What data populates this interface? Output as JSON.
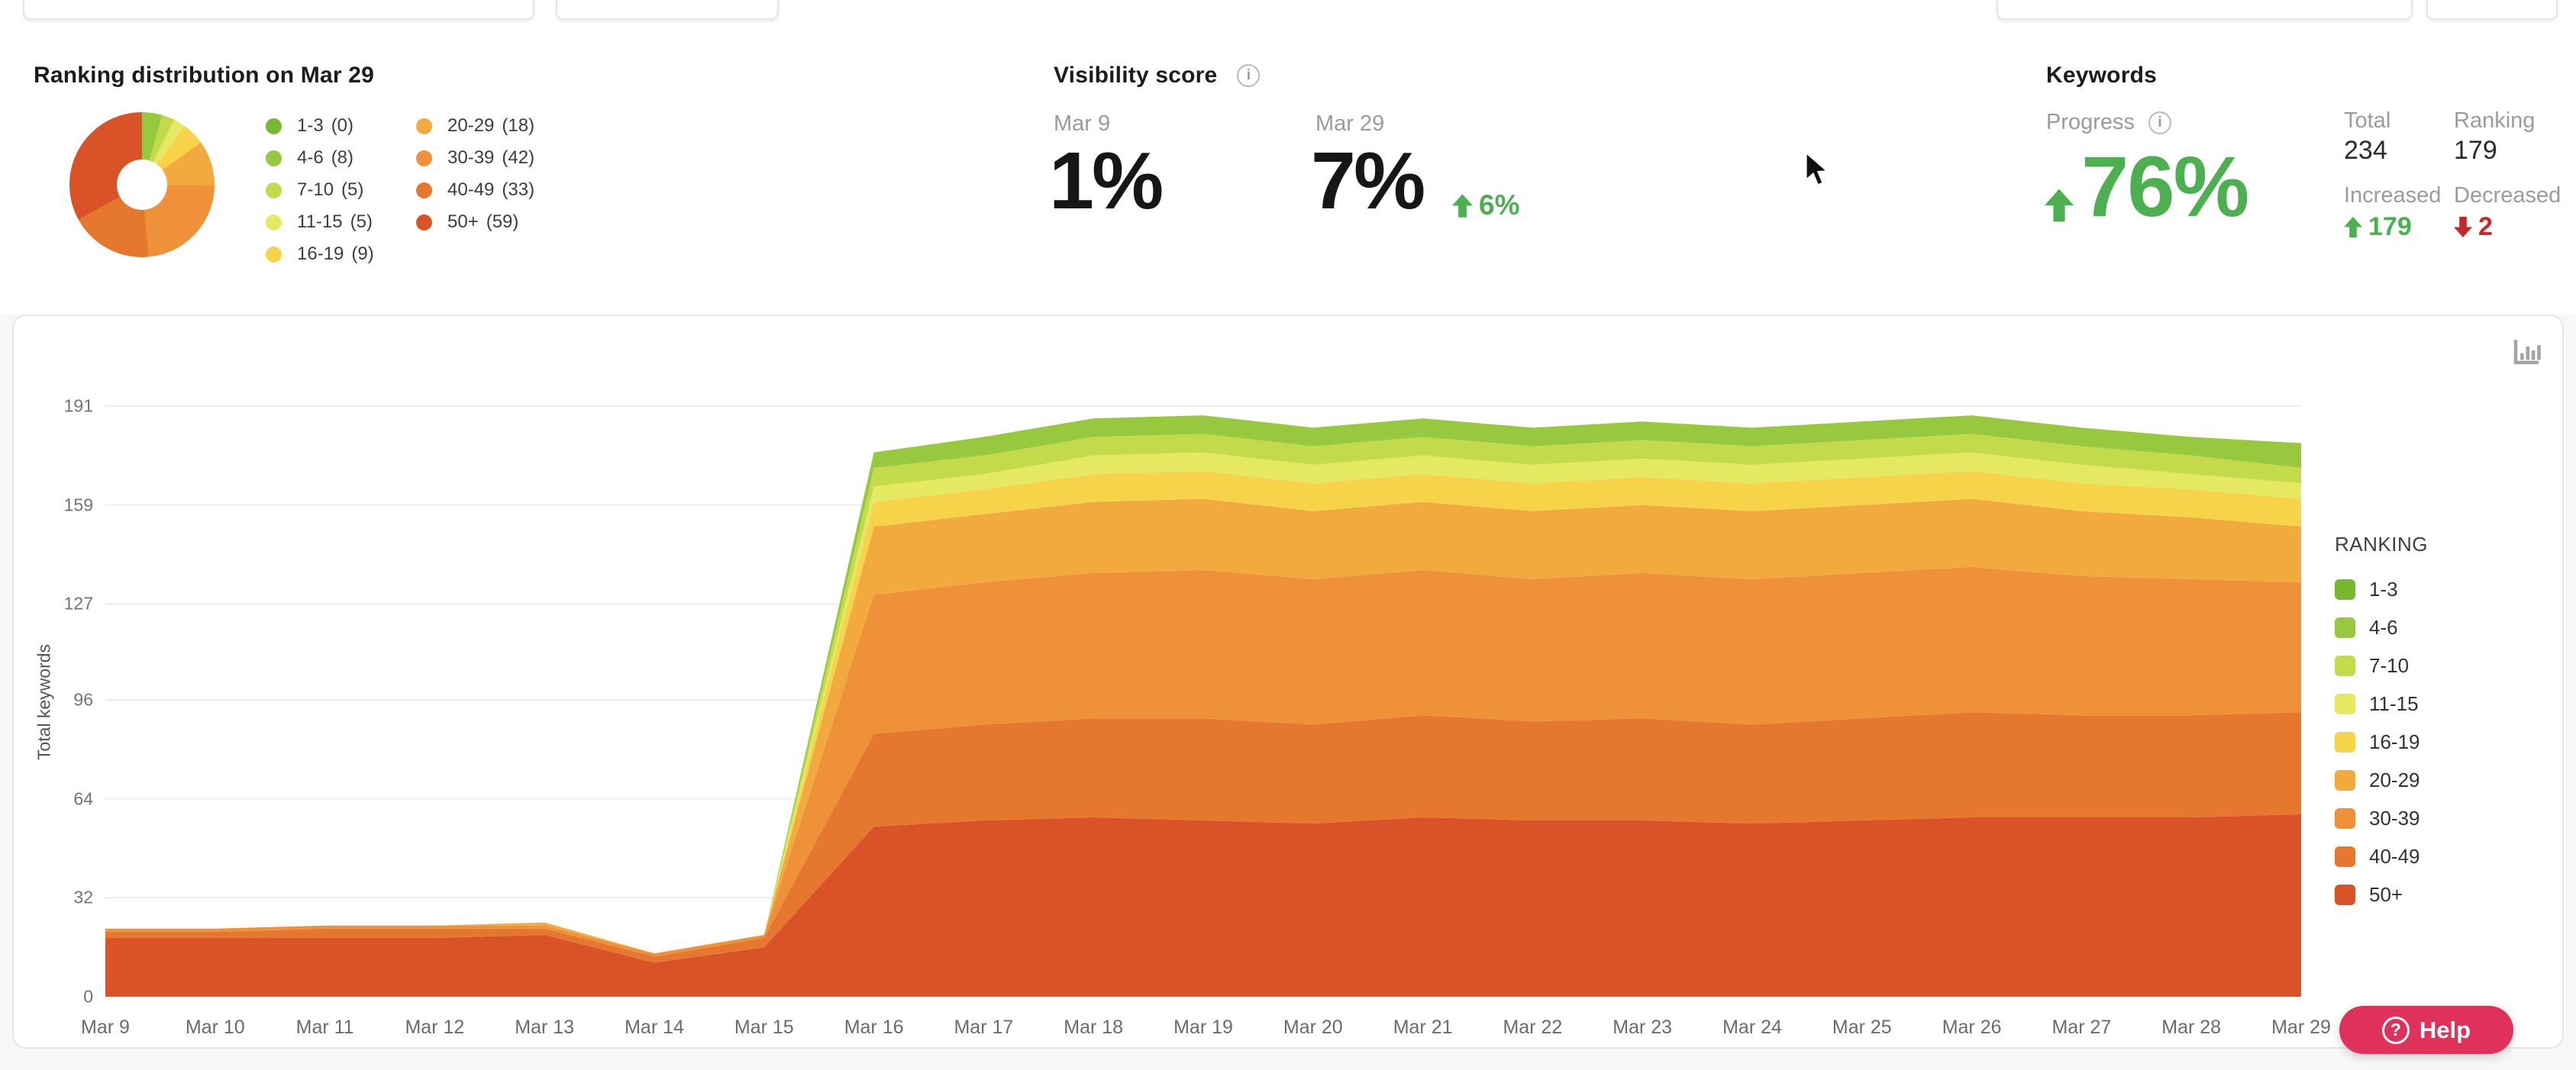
{
  "ranking_distribution": {
    "title": "Ranking distribution on Mar 29",
    "legend": [
      {
        "label": "1-3",
        "count": 0,
        "color": "#76b82e"
      },
      {
        "label": "4-6",
        "count": 8,
        "color": "#97c83d"
      },
      {
        "label": "7-10",
        "count": 5,
        "color": "#c3da4b"
      },
      {
        "label": "11-15",
        "count": 5,
        "color": "#e5e962"
      },
      {
        "label": "16-19",
        "count": 9,
        "color": "#f6d348"
      },
      {
        "label": "20-29",
        "count": 18,
        "color": "#f2a93d"
      },
      {
        "label": "30-39",
        "count": 42,
        "color": "#ee9138"
      },
      {
        "label": "40-49",
        "count": 33,
        "color": "#e6772e"
      },
      {
        "label": "50+",
        "count": 59,
        "color": "#d95228"
      }
    ]
  },
  "visibility_score": {
    "title": "Visibility score",
    "point1_date": "Mar 9",
    "point1_value": "1%",
    "point2_date": "Mar 29",
    "point2_value": "7%",
    "point2_change": "6%"
  },
  "keywords": {
    "title": "Keywords",
    "progress_label": "Progress",
    "progress_value": "76%",
    "total_label": "Total",
    "total_value": "234",
    "ranking_label": "Ranking",
    "ranking_value": "179",
    "increased_label": "Increased",
    "increased_value": "179",
    "decreased_label": "Decreased",
    "decreased_value": "2"
  },
  "help_button": {
    "label": "Help"
  },
  "chart_data": {
    "type": "area",
    "stacked": true,
    "title": "",
    "xlabel": "",
    "ylabel": "Total keywords",
    "legend_title": "RANKING",
    "legend_position": "right",
    "grid": true,
    "ylim": [
      0,
      191
    ],
    "yticks": [
      0,
      32,
      64,
      96,
      127,
      159,
      191
    ],
    "x": [
      "Mar 9",
      "Mar 10",
      "Mar 11",
      "Mar 12",
      "Mar 13",
      "Mar 14",
      "Mar 15",
      "Mar 16",
      "Mar 17",
      "Mar 18",
      "Mar 19",
      "Mar 20",
      "Mar 21",
      "Mar 22",
      "Mar 23",
      "Mar 24",
      "Mar 25",
      "Mar 26",
      "Mar 27",
      "Mar 28",
      "Mar 29"
    ],
    "series_note": "bottom-to-top stacking order",
    "series": [
      {
        "name": "50+",
        "color": "#d95228",
        "values": [
          19,
          19,
          19,
          19,
          20,
          11,
          16,
          55,
          57,
          58,
          57,
          56,
          58,
          57,
          57,
          56,
          57,
          58,
          58,
          58,
          59
        ]
      },
      {
        "name": "40-49",
        "color": "#e6772e",
        "values": [
          2,
          2,
          3,
          3,
          2,
          2,
          3,
          30,
          31,
          32,
          33,
          32,
          33,
          32,
          33,
          32,
          33,
          34,
          33,
          33,
          33
        ]
      },
      {
        "name": "30-39",
        "color": "#ee9138",
        "values": [
          1,
          1,
          1,
          1,
          1,
          1,
          1,
          45,
          46,
          47,
          48,
          47,
          47,
          46,
          47,
          47,
          47,
          47,
          45,
          44,
          42
        ]
      },
      {
        "name": "20-29",
        "color": "#f2a93d",
        "values": [
          0,
          0,
          0,
          0,
          1,
          0,
          0,
          22,
          22,
          23,
          23,
          22,
          22,
          22,
          22,
          22,
          22,
          22,
          21,
          20,
          18
        ]
      },
      {
        "name": "16-19",
        "color": "#f6d348",
        "values": [
          0,
          0,
          0,
          0,
          0,
          0,
          0,
          8,
          8,
          9,
          9,
          9,
          9,
          9,
          9,
          9,
          9,
          9,
          9,
          9,
          9
        ]
      },
      {
        "name": "11-15",
        "color": "#e5e962",
        "values": [
          0,
          0,
          0,
          0,
          0,
          0,
          0,
          5,
          5,
          6,
          6,
          6,
          6,
          6,
          6,
          6,
          6,
          6,
          6,
          5,
          5
        ]
      },
      {
        "name": "7-10",
        "color": "#c3da4b",
        "values": [
          0,
          0,
          0,
          0,
          0,
          0,
          0,
          6,
          6,
          6,
          6,
          6,
          6,
          6,
          6,
          6,
          6,
          6,
          6,
          6,
          5
        ]
      },
      {
        "name": "4-6",
        "color": "#97c83d",
        "values": [
          0,
          0,
          0,
          0,
          0,
          0,
          0,
          5,
          6,
          6,
          6,
          6,
          6,
          6,
          6,
          6,
          6,
          6,
          6,
          6,
          8
        ]
      },
      {
        "name": "1-3",
        "color": "#76b82e",
        "values": [
          0,
          0,
          0,
          0,
          0,
          0,
          0,
          0,
          0,
          0,
          0,
          0,
          0,
          0,
          0,
          0,
          0,
          0,
          0,
          0,
          0
        ]
      }
    ]
  }
}
